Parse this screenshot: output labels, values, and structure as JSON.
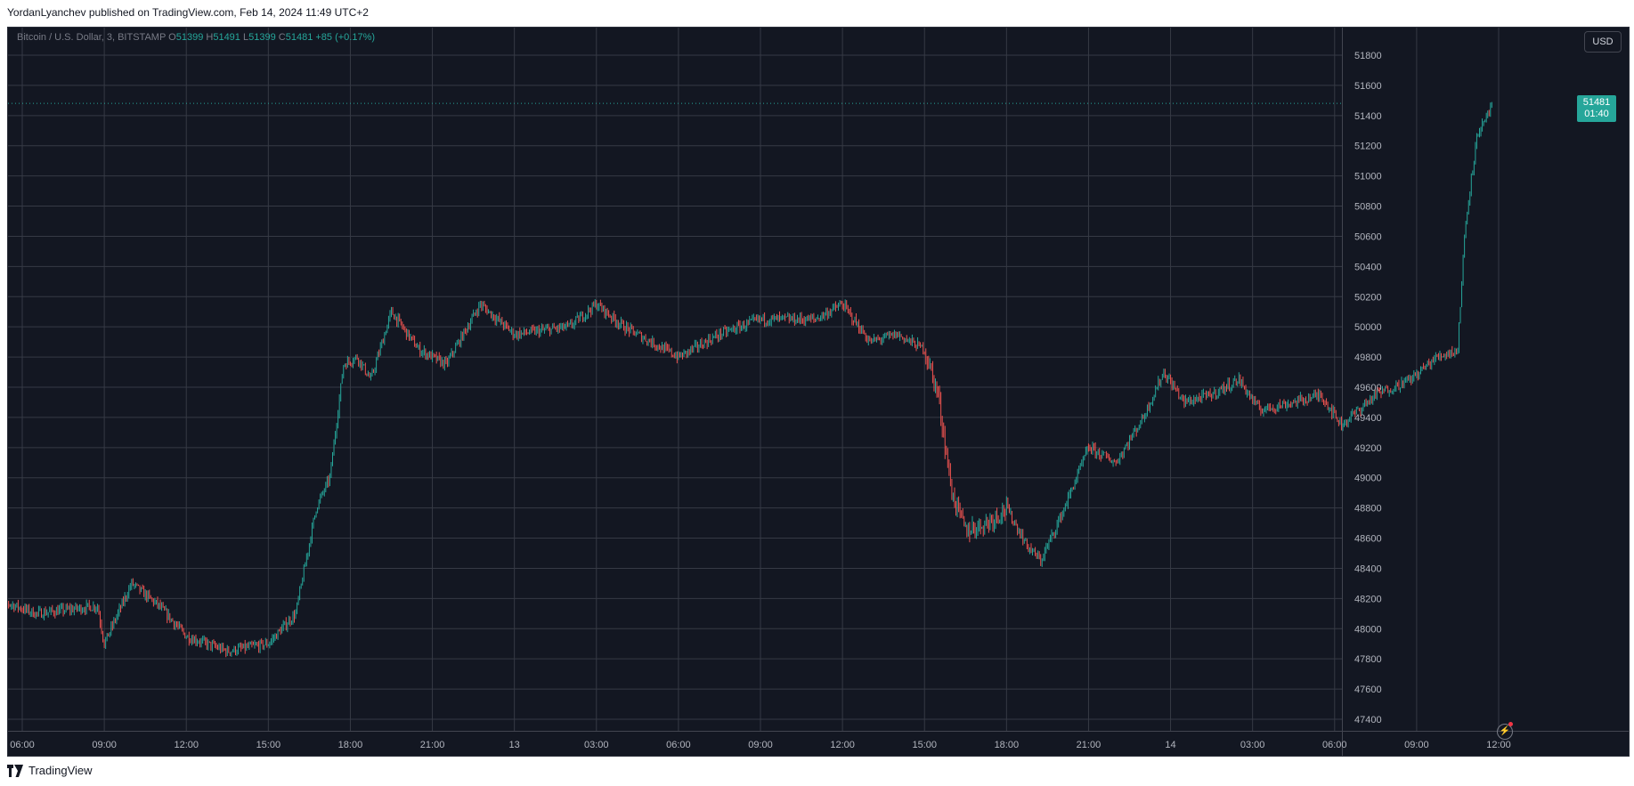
{
  "header": {
    "text": "YordanLyanchev published on TradingView.com, Feb 14, 2024 11:49 UTC+2"
  },
  "legend": {
    "symbol": "Bitcoin / U.S. Dollar, 3, BITSTAMP",
    "o_label": "O",
    "o": "51399",
    "h_label": "H",
    "h": "51491",
    "l_label": "L",
    "l": "51399",
    "c_label": "C",
    "c": "51481",
    "change": "+85 (+0.17%)"
  },
  "currency_label": "USD",
  "price_tag": {
    "price": "51481",
    "countdown": "01:40"
  },
  "footer": {
    "brand": "TradingView"
  },
  "colors": {
    "up": "#26a69a",
    "down": "#ef5350",
    "background": "#131722",
    "grid": "#363a45",
    "text": "#b2b5be"
  },
  "icons": [
    "tradingview-logo-icon",
    "lightning-icon"
  ],
  "chart_data": {
    "type": "candlestick",
    "interval": "3 minutes",
    "ylim": [
      47400,
      51800
    ],
    "yticks": [
      47400,
      47600,
      47800,
      48000,
      48200,
      48400,
      48600,
      48800,
      49000,
      49200,
      49400,
      49600,
      49800,
      50000,
      50200,
      50400,
      50600,
      50800,
      51000,
      51200,
      51400,
      51600,
      51800
    ],
    "xticks": [
      "06:00",
      "09:00",
      "12:00",
      "15:00",
      "18:00",
      "21:00",
      "13",
      "03:00",
      "06:00",
      "09:00",
      "12:00",
      "15:00",
      "18:00",
      "21:00",
      "14",
      "03:00",
      "06:00",
      "09:00",
      "12:00"
    ],
    "last_price": 51481,
    "approx_close_path": [
      {
        "t": "Feb 12 05:00",
        "p": 48200
      },
      {
        "t": "Feb 12 06:30",
        "p": 48100
      },
      {
        "t": "Feb 12 08:45",
        "p": 48150
      },
      {
        "t": "Feb 12 09:00",
        "p": 47900
      },
      {
        "t": "Feb 12 10:00",
        "p": 48300
      },
      {
        "t": "Feb 12 11:00",
        "p": 48150
      },
      {
        "t": "Feb 12 12:00",
        "p": 47950
      },
      {
        "t": "Feb 12 13:30",
        "p": 47850
      },
      {
        "t": "Feb 12 15:00",
        "p": 47900
      },
      {
        "t": "Feb 12 16:00",
        "p": 48100
      },
      {
        "t": "Feb 12 16:45",
        "p": 48800
      },
      {
        "t": "Feb 12 17:15",
        "p": 49000
      },
      {
        "t": "Feb 12 17:45",
        "p": 49750
      },
      {
        "t": "Feb 12 18:15",
        "p": 49800
      },
      {
        "t": "Feb 12 18:45",
        "p": 49650
      },
      {
        "t": "Feb 12 19:30",
        "p": 50100
      },
      {
        "t": "Feb 12 20:30",
        "p": 49850
      },
      {
        "t": "Feb 12 21:30",
        "p": 49750
      },
      {
        "t": "Feb 12 22:45",
        "p": 50150
      },
      {
        "t": "Feb 13 00:00",
        "p": 49950
      },
      {
        "t": "Feb 13 02:00",
        "p": 50000
      },
      {
        "t": "Feb 13 03:00",
        "p": 50150
      },
      {
        "t": "Feb 13 04:00",
        "p": 50000
      },
      {
        "t": "Feb 13 05:00",
        "p": 49900
      },
      {
        "t": "Feb 13 06:00",
        "p": 49800
      },
      {
        "t": "Feb 13 07:30",
        "p": 49950
      },
      {
        "t": "Feb 13 09:00",
        "p": 50050
      },
      {
        "t": "Feb 13 11:00",
        "p": 50050
      },
      {
        "t": "Feb 13 12:00",
        "p": 50150
      },
      {
        "t": "Feb 13 13:00",
        "p": 49900
      },
      {
        "t": "Feb 13 14:00",
        "p": 49950
      },
      {
        "t": "Feb 13 15:00",
        "p": 49850
      },
      {
        "t": "Feb 13 15:30",
        "p": 49550
      },
      {
        "t": "Feb 13 16:00",
        "p": 48900
      },
      {
        "t": "Feb 13 16:30",
        "p": 48650
      },
      {
        "t": "Feb 13 17:15",
        "p": 48700
      },
      {
        "t": "Feb 13 18:00",
        "p": 48800
      },
      {
        "t": "Feb 13 18:45",
        "p": 48550
      },
      {
        "t": "Feb 13 19:15",
        "p": 48450
      },
      {
        "t": "Feb 13 20:00",
        "p": 48750
      },
      {
        "t": "Feb 13 21:00",
        "p": 49200
      },
      {
        "t": "Feb 13 22:00",
        "p": 49100
      },
      {
        "t": "Feb 13 23:00",
        "p": 49400
      },
      {
        "t": "Feb 13 23:45",
        "p": 49700
      },
      {
        "t": "Feb 14 00:30",
        "p": 49500
      },
      {
        "t": "Feb 14 01:30",
        "p": 49550
      },
      {
        "t": "Feb 14 02:30",
        "p": 49650
      },
      {
        "t": "Feb 14 03:15",
        "p": 49450
      },
      {
        "t": "Feb 14 04:30",
        "p": 49500
      },
      {
        "t": "Feb 14 05:30",
        "p": 49550
      },
      {
        "t": "Feb 14 06:15",
        "p": 49350
      },
      {
        "t": "Feb 14 07:30",
        "p": 49550
      },
      {
        "t": "Feb 14 08:45",
        "p": 49650
      },
      {
        "t": "Feb 14 09:45",
        "p": 49800
      },
      {
        "t": "Feb 14 10:30",
        "p": 49850
      },
      {
        "t": "Feb 14 10:45",
        "p": 50600
      },
      {
        "t": "Feb 14 11:00",
        "p": 51000
      },
      {
        "t": "Feb 14 11:15",
        "p": 51300
      },
      {
        "t": "Feb 14 11:30",
        "p": 51350
      },
      {
        "t": "Feb 14 11:45",
        "p": 51481
      }
    ]
  }
}
